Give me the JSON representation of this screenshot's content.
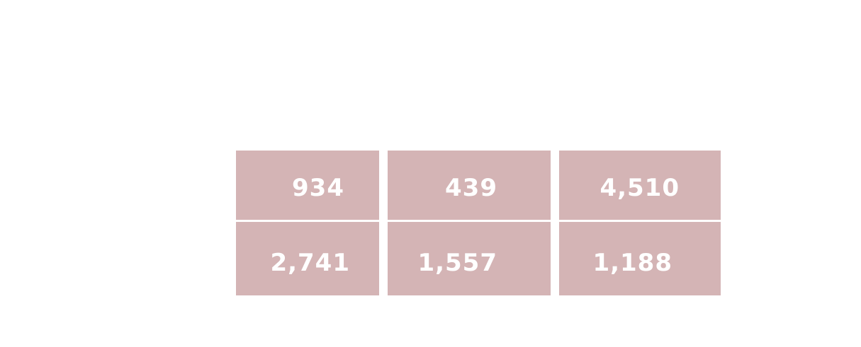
{
  "chart_data": {
    "type": "table",
    "cell_color": "#d4b4b5",
    "text_color": "#ffffff",
    "rows": [
      [
        "934",
        "439",
        "4,510"
      ],
      [
        "2,741",
        "1,557",
        "1,188"
      ]
    ],
    "values": [
      [
        934,
        439,
        4510
      ],
      [
        2741,
        1557,
        1188
      ]
    ]
  }
}
